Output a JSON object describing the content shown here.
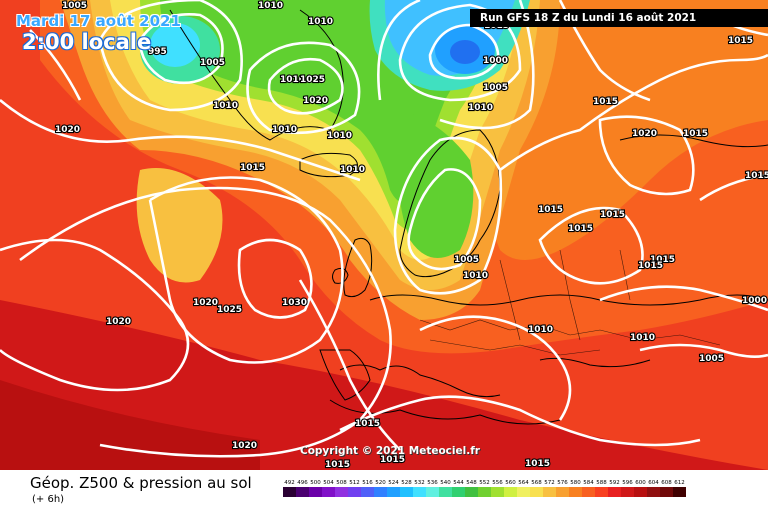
{
  "header": {
    "date": "Mardi 17 août 2021",
    "time": "2:00 locale",
    "run": "Run GFS 18 Z du Lundi 16 août 2021"
  },
  "copyright": "Copyright © 2021 Meteociel.fr",
  "legend": {
    "title": "Géop. Z500 & pression au sol",
    "subtitle": "(+ 6h)",
    "scale": {
      "labels": [
        "492",
        "496",
        "500",
        "504",
        "508",
        "512",
        "516",
        "520",
        "524",
        "528",
        "532",
        "536",
        "540",
        "544",
        "548",
        "552",
        "556",
        "560",
        "564",
        "568",
        "572",
        "576",
        "580",
        "584",
        "588",
        "592",
        "596",
        "600",
        "604",
        "608",
        "612"
      ],
      "colors": [
        "#2a0033",
        "#4a0070",
        "#6a00a8",
        "#8010c8",
        "#9030e0",
        "#7040f0",
        "#5060f8",
        "#3080ff",
        "#20a0ff",
        "#20c0ff",
        "#40e0ff",
        "#60f0e0",
        "#40e0a0",
        "#30d070",
        "#40c040",
        "#70d030",
        "#a0e030",
        "#d0f040",
        "#f0f060",
        "#f8e050",
        "#f8c040",
        "#f8a030",
        "#f88020",
        "#f86020",
        "#f84020",
        "#e82020",
        "#d01818",
        "#b81010",
        "#901010",
        "#700808",
        "#400000"
      ]
    }
  },
  "isobars": [
    {
      "label": "1005",
      "color": "#ffffff"
    },
    {
      "label": "1010",
      "color": "#ffffff"
    },
    {
      "label": "1015",
      "color": "#ffffff"
    },
    {
      "label": "1020",
      "color": "#ffffff"
    },
    {
      "label": "1025",
      "color": "#ffffff"
    },
    {
      "label": "1030",
      "color": "#ffffff"
    },
    {
      "label": "1000",
      "color": "#ffffff"
    },
    {
      "label": "995",
      "color": "#ffffff"
    }
  ],
  "map_labels": [
    "1005",
    "1010",
    "1010",
    "995",
    "1005",
    "1010",
    "1010",
    "1025",
    "1020",
    "1010",
    "1010",
    "1015",
    "1010",
    "1000",
    "1005",
    "1010",
    "1015",
    "1020",
    "1015",
    "1015",
    "1015",
    "1015",
    "1015",
    "1005",
    "1010",
    "1020",
    "1025",
    "1030",
    "1020",
    "1010",
    "1010",
    "1000",
    "1005",
    "1015",
    "1020",
    "1015",
    "1015",
    "1015",
    "1020",
    "1015",
    "1015",
    "1015",
    "1015"
  ],
  "colors": {
    "ocean_red": "#f02818",
    "orange": "#f87818",
    "yellow": "#f8e040",
    "green": "#60d030",
    "cyan": "#40e0ff",
    "blue": "#2080ff",
    "dark_red": "#c01010"
  }
}
